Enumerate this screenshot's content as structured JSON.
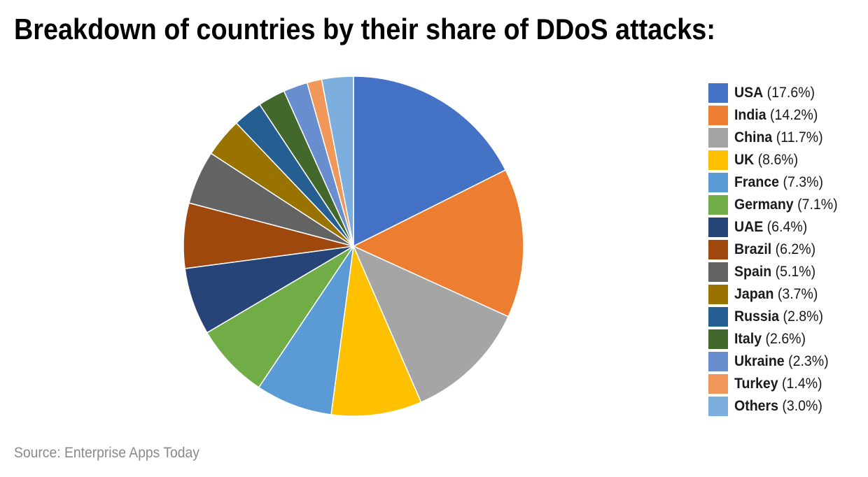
{
  "title": "Breakdown of countries by their share of DDoS attacks:",
  "source": "Source: Enterprise Apps Today",
  "chart_data": {
    "type": "pie",
    "title": "Breakdown of countries by their share of DDoS attacks:",
    "categories": [
      "USA",
      "India",
      "China",
      "UK",
      "France",
      "Germany",
      "UAE",
      "Brazil",
      "Spain",
      "Japan",
      "Russia",
      "Italy",
      "Ukraine",
      "Turkey",
      "Others"
    ],
    "values": [
      17.6,
      14.2,
      11.7,
      8.6,
      7.3,
      7.1,
      6.4,
      6.2,
      5.1,
      3.7,
      2.8,
      2.6,
      2.3,
      1.4,
      3.0
    ],
    "unit": "%",
    "colors": [
      "#4472c4",
      "#ed7d31",
      "#a5a5a5",
      "#ffc000",
      "#5b9bd5",
      "#70ad47",
      "#264478",
      "#9e480e",
      "#636363",
      "#997300",
      "#255e91",
      "#43682b",
      "#698ed0",
      "#f1975a",
      "#7cafdd"
    ],
    "start_angle": "12 o'clock, clockwise",
    "legend_position": "right",
    "source": "Source: Enterprise Apps Today"
  },
  "legend": [
    {
      "name": "USA",
      "value": "(17.6%)",
      "color": "#4472c4"
    },
    {
      "name": "India",
      "value": "(14.2%)",
      "color": "#ed7d31"
    },
    {
      "name": "China",
      "value": "(11.7%)",
      "color": "#a5a5a5"
    },
    {
      "name": "UK",
      "value": "(8.6%)",
      "color": "#ffc000"
    },
    {
      "name": "France",
      "value": "(7.3%)",
      "color": "#5b9bd5"
    },
    {
      "name": "Germany",
      "value": "(7.1%)",
      "color": "#70ad47"
    },
    {
      "name": "UAE",
      "value": "(6.4%)",
      "color": "#264478"
    },
    {
      "name": "Brazil",
      "value": "(6.2%)",
      "color": "#9e480e"
    },
    {
      "name": "Spain",
      "value": "(5.1%)",
      "color": "#636363"
    },
    {
      "name": "Japan",
      "value": "(3.7%)",
      "color": "#997300"
    },
    {
      "name": "Russia",
      "value": "(2.8%)",
      "color": "#255e91"
    },
    {
      "name": "Italy",
      "value": "(2.6%)",
      "color": "#43682b"
    },
    {
      "name": "Ukraine",
      "value": "(2.3%)",
      "color": "#698ed0"
    },
    {
      "name": "Turkey",
      "value": "(1.4%)",
      "color": "#f1975a"
    },
    {
      "name": "Others",
      "value": "(3.0%)",
      "color": "#7cafdd"
    }
  ]
}
